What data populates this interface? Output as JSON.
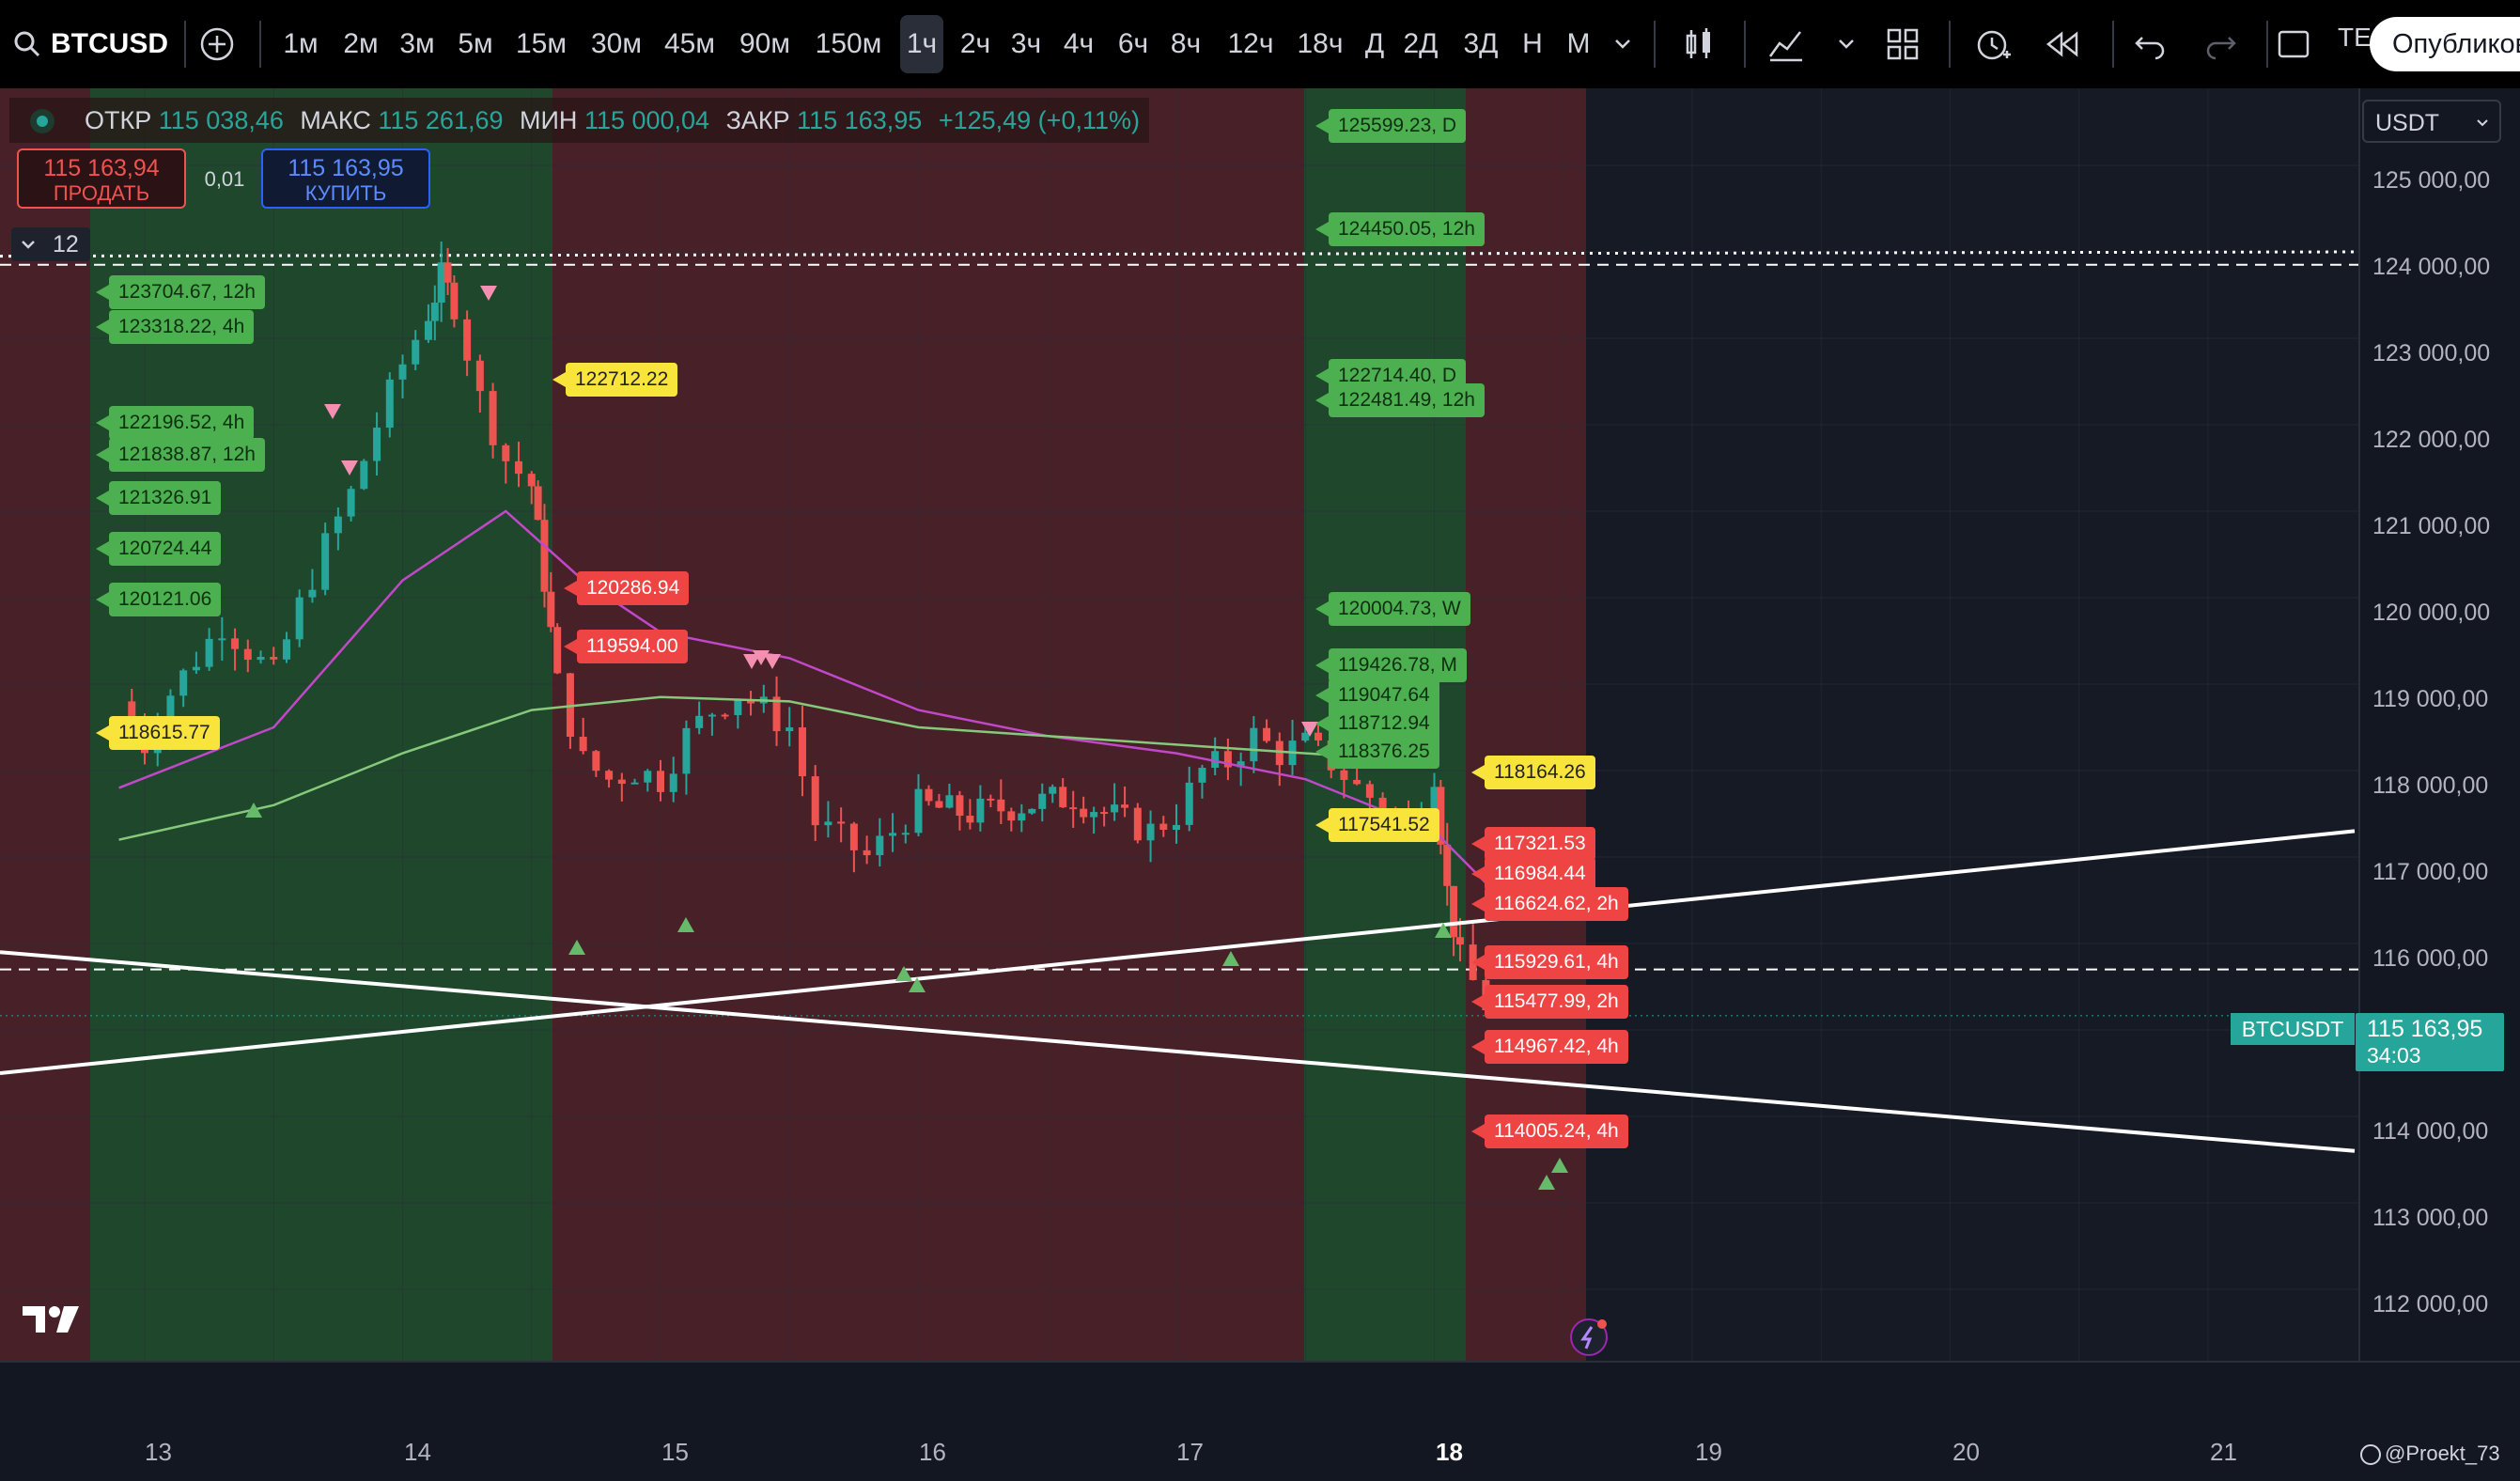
{
  "toolbar": {
    "symbol": "BTCUSD",
    "timeframes": [
      "1м",
      "2м",
      "3м",
      "5м",
      "15м",
      "30м",
      "45м",
      "90м",
      "150м",
      "1ч",
      "2ч",
      "3ч",
      "4ч",
      "6ч",
      "8ч",
      "12ч",
      "18ч",
      "Д",
      "2Д",
      "3Д",
      "Н",
      "М"
    ],
    "selected_timeframe": "1ч",
    "publish_label": "Опубликовать",
    "extra_label": "TE"
  },
  "legend": {
    "open_key": "ОТКР",
    "open": "115 038,46",
    "high_key": "МАКС",
    "high": "115 261,69",
    "low_key": "МИН",
    "low": "115 000,04",
    "close_key": "ЗАКР",
    "close": "115 163,95",
    "change": "+125,49 (+0,11%)"
  },
  "trade": {
    "sell_price": "115 163,94",
    "sell_label": "ПРОДАТЬ",
    "spread": "0,01",
    "buy_price": "115 163,95",
    "buy_label": "КУПИТЬ",
    "collapse_count": "12"
  },
  "currency_select": "USDT",
  "price_axis": {
    "labels": [
      "125 000,00",
      "124 000,00",
      "123 000,00",
      "122 000,00",
      "121 000,00",
      "120 000,00",
      "119 000,00",
      "118 000,00",
      "117 000,00",
      "116 000,00",
      "114 000,00",
      "113 000,00",
      "112 000,00"
    ],
    "current_symbol": "BTCUSDT",
    "current_price": "115 163,95",
    "countdown": "34:03"
  },
  "time_axis": [
    "13",
    "14",
    "15",
    "16",
    "17",
    "18",
    "19",
    "20",
    "21"
  ],
  "watermark": "@Proekt_73",
  "level_labels": {
    "green": [
      "123704.67, 12h",
      "123318.22, 4h",
      "122196.52, 4h",
      "121838.87, 12h",
      "121326.91",
      "120724.44",
      "120121.06",
      "125599.23, D",
      "124450.05, 12h",
      "122714.40, D",
      "122481.49, 12h",
      "120004.73, W",
      "119426.78, M",
      "119047.64",
      "118712.94",
      "118376.25"
    ],
    "yellow": [
      "122712.22",
      "118615.77",
      "118164.26",
      "117541.52"
    ],
    "red": [
      "120286.94",
      "119594.00",
      "117321.53",
      "116984.44",
      "116624.62, 2h",
      "115929.61, 4h",
      "115477.99, 2h",
      "114967.42, 4h",
      "114005.24, 4h"
    ]
  },
  "colors": {
    "bull": "#26a69a",
    "bear": "#ef5350",
    "zone_green": "#1f4a2c",
    "zone_red": "#4a2128",
    "ma_pink": "#c148c8",
    "ma_green": "#86c97a",
    "accent_green": "#26a69a"
  },
  "chart_data": {
    "type": "candlestick",
    "symbol": "BTCUSD",
    "interval": "1h",
    "ylim": [
      111500,
      125900
    ],
    "x_ticks": [
      "13",
      "14",
      "15",
      "16",
      "17",
      "18",
      "19",
      "20",
      "21"
    ],
    "last_candle": {
      "open": 115038.46,
      "high": 115261.69,
      "low": 115000.04,
      "close": 115163.95
    },
    "close_path": [
      [
        12.9,
        118800
      ],
      [
        13.0,
        118300
      ],
      [
        13.1,
        118900
      ],
      [
        13.2,
        119300
      ],
      [
        13.3,
        119700
      ],
      [
        13.4,
        119400
      ],
      [
        13.5,
        119100
      ],
      [
        13.6,
        119900
      ],
      [
        13.7,
        120600
      ],
      [
        13.8,
        121200
      ],
      [
        13.9,
        122000
      ],
      [
        14.0,
        122700
      ],
      [
        14.1,
        123300
      ],
      [
        14.15,
        123700
      ],
      [
        14.2,
        123400
      ],
      [
        14.3,
        122300
      ],
      [
        14.4,
        121600
      ],
      [
        14.5,
        121300
      ],
      [
        14.55,
        120200
      ],
      [
        14.6,
        119000
      ],
      [
        14.7,
        118100
      ],
      [
        14.8,
        117900
      ],
      [
        14.9,
        118000
      ],
      [
        15.0,
        117900
      ],
      [
        15.1,
        118400
      ],
      [
        15.2,
        118700
      ],
      [
        15.3,
        118900
      ],
      [
        15.4,
        118700
      ],
      [
        15.5,
        118500
      ],
      [
        15.6,
        117400
      ],
      [
        15.7,
        117200
      ],
      [
        15.8,
        117000
      ],
      [
        15.9,
        117300
      ],
      [
        16.0,
        117600
      ],
      [
        16.2,
        117500
      ],
      [
        16.4,
        117600
      ],
      [
        16.6,
        117700
      ],
      [
        16.8,
        117400
      ],
      [
        16.9,
        117300
      ],
      [
        17.0,
        117500
      ],
      [
        17.1,
        118000
      ],
      [
        17.2,
        118100
      ],
      [
        17.3,
        118400
      ],
      [
        17.4,
        118200
      ],
      [
        17.5,
        118300
      ],
      [
        17.6,
        118100
      ],
      [
        17.7,
        117800
      ],
      [
        17.8,
        117600
      ],
      [
        17.9,
        117400
      ],
      [
        18.0,
        118000
      ],
      [
        18.05,
        116600
      ],
      [
        18.1,
        115800
      ],
      [
        18.2,
        115300
      ],
      [
        18.3,
        115164
      ]
    ],
    "series_ma": [
      {
        "name": "",
        "color": "pink",
        "points": [
          [
            12.9,
            117800
          ],
          [
            13.5,
            118500
          ],
          [
            14.0,
            120200
          ],
          [
            14.4,
            121000
          ],
          [
            14.7,
            120200
          ],
          [
            15.0,
            119600
          ],
          [
            15.5,
            119300
          ],
          [
            16.0,
            118700
          ],
          [
            16.5,
            118400
          ],
          [
            17.0,
            118200
          ],
          [
            17.5,
            117900
          ],
          [
            18.0,
            117300
          ],
          [
            18.2,
            116700
          ]
        ]
      },
      {
        "name": "",
        "color": "green",
        "points": [
          [
            12.9,
            117200
          ],
          [
            13.5,
            117600
          ],
          [
            14.0,
            118200
          ],
          [
            14.5,
            118700
          ],
          [
            15.0,
            118850
          ],
          [
            15.5,
            118800
          ],
          [
            16.0,
            118500
          ],
          [
            16.5,
            118400
          ],
          [
            17.0,
            118300
          ],
          [
            17.5,
            118200
          ],
          [
            18.0,
            118100
          ]
        ]
      }
    ],
    "trendlines": [
      {
        "from": [
          12.9,
          114500
        ],
        "to": [
          21.5,
          117300
        ]
      },
      {
        "from": [
          12.9,
          115900
        ],
        "to": [
          21.5,
          113600
        ]
      }
    ],
    "horizontal_lines": [
      123950,
      123850,
      115700
    ]
  }
}
